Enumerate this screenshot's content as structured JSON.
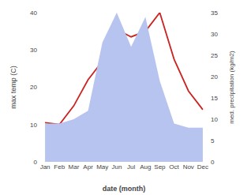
{
  "chart_data": {
    "type": "line",
    "categories": [
      "Jan",
      "Feb",
      "Mar",
      "Apr",
      "May",
      "Jun",
      "Jul",
      "Aug",
      "Sep",
      "Oct",
      "Nov",
      "Dec"
    ],
    "xlabel": "date (month)",
    "ylabel": "max temp (C)",
    "y2label": "med. precipitation (kg/m2)",
    "series": [
      {
        "type": "area",
        "axis": "y2",
        "color": "#b8c4f0",
        "values": [
          9,
          9,
          10,
          12,
          28,
          35,
          27,
          34,
          19,
          9,
          8,
          8
        ]
      },
      {
        "type": "line",
        "color": "#cc2222",
        "values": [
          10.5,
          10.0,
          15.0,
          22.0,
          27.0,
          35.5,
          33.5,
          35.0,
          40.0,
          27.5,
          19.0,
          14.0
        ]
      }
    ],
    "ylim": [
      0,
      40
    ],
    "yticks": [
      0,
      10,
      20,
      30,
      40
    ],
    "y2lim": [
      0,
      35
    ],
    "y2ticks": [
      0,
      5,
      10,
      15,
      20,
      25,
      30,
      35
    ],
    "grid": false
  }
}
